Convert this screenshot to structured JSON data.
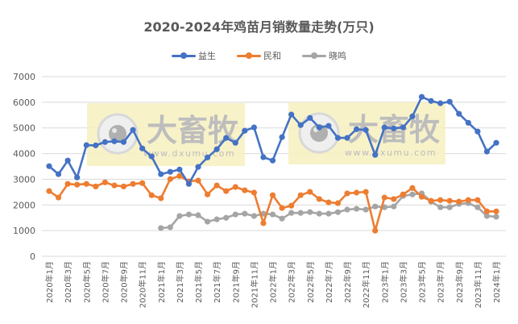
{
  "chart_data": {
    "type": "line",
    "title": "2020-2024年鸡苗月销数量走势(万只)",
    "xlabel": "",
    "ylabel": "",
    "ylim": [
      0,
      7000
    ],
    "yticks": [
      0,
      1000,
      2000,
      3000,
      4000,
      5000,
      6000,
      7000
    ],
    "grid": true,
    "legend_position": "top",
    "x_tick_labels": [
      "2020年1月",
      "2020年3月",
      "2020年5月",
      "2020年7月",
      "2020年9月",
      "2020年11月",
      "2021年1月",
      "2021年3月",
      "2021年5月",
      "2021年7月",
      "2021年9月",
      "2021年11月",
      "2022年1月",
      "2022年3月",
      "2022年5月",
      "2022年7月",
      "2022年9月",
      "2022年11月",
      "2023年1月",
      "2023年3月",
      "2023年5月",
      "2023年7月",
      "2023年9月",
      "2023年11月",
      "2024年1月"
    ],
    "x": [
      "2020-01",
      "2020-02",
      "2020-03",
      "2020-04",
      "2020-05",
      "2020-06",
      "2020-07",
      "2020-08",
      "2020-09",
      "2020-10",
      "2020-11",
      "2020-12",
      "2021-01",
      "2021-02",
      "2021-03",
      "2021-04",
      "2021-05",
      "2021-06",
      "2021-07",
      "2021-08",
      "2021-09",
      "2021-10",
      "2021-11",
      "2021-12",
      "2022-01",
      "2022-02",
      "2022-03",
      "2022-04",
      "2022-05",
      "2022-06",
      "2022-07",
      "2022-08",
      "2022-09",
      "2022-10",
      "2022-11",
      "2022-12",
      "2023-01",
      "2023-02",
      "2023-03",
      "2023-04",
      "2023-05",
      "2023-06",
      "2023-07",
      "2023-08",
      "2023-09",
      "2023-10",
      "2023-11",
      "2023-12",
      "2024-01"
    ],
    "series": [
      {
        "name": "益生",
        "color": "#4472C4",
        "values": [
          3510,
          3200,
          3730,
          3070,
          4330,
          4320,
          4450,
          4480,
          4450,
          4920,
          4200,
          3890,
          3200,
          3290,
          3380,
          2820,
          3480,
          3850,
          4170,
          4610,
          4420,
          4890,
          5020,
          3860,
          3730,
          4640,
          5520,
          5110,
          5390,
          5020,
          5080,
          4610,
          4610,
          4950,
          4920,
          3950,
          5020,
          4980,
          5020,
          5450,
          6210,
          6050,
          5960,
          6020,
          5550,
          5200,
          4860,
          4080,
          4420
        ]
      },
      {
        "name": "民和",
        "color": "#ED7D31",
        "values": [
          2540,
          2290,
          2820,
          2790,
          2820,
          2720,
          2880,
          2760,
          2720,
          2820,
          2850,
          2380,
          2260,
          3010,
          3130,
          2920,
          2950,
          2410,
          2760,
          2540,
          2700,
          2570,
          2480,
          1290,
          2380,
          1880,
          1970,
          2380,
          2510,
          2230,
          2100,
          2070,
          2450,
          2480,
          2510,
          1000,
          2290,
          2230,
          2410,
          2660,
          2320,
          2160,
          2190,
          2160,
          2130,
          2190,
          2190,
          1750,
          1750
        ]
      },
      {
        "name": "晓鸣",
        "color": "#A5A5A5",
        "values": [
          null,
          null,
          null,
          null,
          null,
          null,
          null,
          null,
          null,
          null,
          null,
          null,
          1100,
          1130,
          1570,
          1630,
          1600,
          1350,
          1440,
          1500,
          1630,
          1660,
          1570,
          1660,
          1630,
          1470,
          1690,
          1690,
          1720,
          1660,
          1660,
          1720,
          1820,
          1850,
          1820,
          1940,
          1910,
          1940,
          2350,
          2410,
          2450,
          2130,
          1910,
          1910,
          2040,
          2070,
          1910,
          1570,
          1540
        ]
      }
    ],
    "annotations": [
      "watermark: 大畜牧 www.dxumu.com (x2)"
    ]
  },
  "watermark": {
    "brand": "大畜牧",
    "url": "www.dxumu.com"
  }
}
